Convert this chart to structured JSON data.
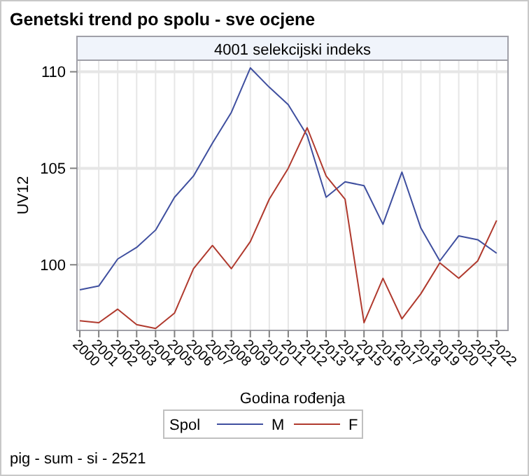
{
  "chart_data": {
    "type": "line",
    "title": "Genetski trend po spolu - sve ocjene",
    "subtitle": "4001 selekcijski indeks",
    "xlabel": "Godina rođenja",
    "ylabel": "UV12",
    "legend_title": "Spol",
    "annotations": [
      "pig - sum - si - 2521"
    ],
    "x": [
      2000,
      2001,
      2002,
      2003,
      2004,
      2005,
      2006,
      2007,
      2008,
      2009,
      2010,
      2011,
      2012,
      2013,
      2014,
      2015,
      2016,
      2017,
      2018,
      2019,
      2020,
      2021,
      2022
    ],
    "series": [
      {
        "name": "M",
        "color": "#3f4f9f",
        "values": [
          98.7,
          98.9,
          100.3,
          100.9,
          101.8,
          103.5,
          104.6,
          106.3,
          107.9,
          110.2,
          109.2,
          108.3,
          106.7,
          103.5,
          104.3,
          104.1,
          102.1,
          104.8,
          101.9,
          100.2,
          101.5,
          101.3,
          100.6
        ]
      },
      {
        "name": "F",
        "color": "#b03a2e",
        "values": [
          97.1,
          97.0,
          97.7,
          96.9,
          96.7,
          97.5,
          99.8,
          101.0,
          99.8,
          101.2,
          103.4,
          105.0,
          107.1,
          104.6,
          103.4,
          97.0,
          99.3,
          97.2,
          98.5,
          100.1,
          99.3,
          100.2,
          102.3
        ]
      }
    ],
    "xlim": [
      1999.85,
      2022.6
    ],
    "ylim": [
      96.6,
      110.6
    ],
    "xticks": [
      2000,
      2001,
      2002,
      2003,
      2004,
      2005,
      2006,
      2007,
      2008,
      2009,
      2010,
      2011,
      2012,
      2013,
      2014,
      2015,
      2016,
      2017,
      2018,
      2019,
      2020,
      2021,
      2022
    ],
    "yticks": [
      100,
      105,
      110
    ],
    "grid": true,
    "legend": "bottom",
    "line_style": "solid",
    "marker": "none"
  }
}
